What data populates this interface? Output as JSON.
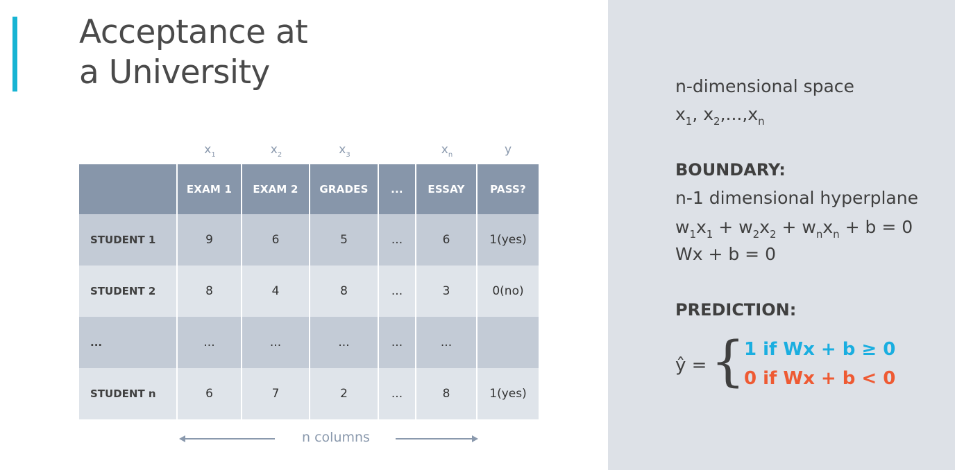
{
  "title": {
    "line1": "Acceptance at",
    "line2": "a University"
  },
  "table": {
    "variables": [
      {
        "base": "x",
        "sub": "1"
      },
      {
        "base": "x",
        "sub": "2"
      },
      {
        "base": "x",
        "sub": "3"
      },
      {
        "base": "",
        "sub": ""
      },
      {
        "base": "x",
        "sub": "n"
      },
      {
        "base": "y",
        "sub": ""
      }
    ],
    "headers": [
      "",
      "EXAM 1",
      "EXAM 2",
      "GRADES",
      "...",
      "ESSAY",
      "PASS?"
    ],
    "rows": [
      [
        "STUDENT 1",
        "9",
        "6",
        "5",
        "...",
        "6",
        "1(yes)"
      ],
      [
        "STUDENT 2",
        "8",
        "4",
        "8",
        "...",
        "3",
        "0(no)"
      ],
      [
        "...",
        "...",
        "...",
        "...",
        "...",
        "...",
        ""
      ],
      [
        "STUDENT n",
        "6",
        "7",
        "2",
        "...",
        "8",
        "1(yes)"
      ]
    ],
    "columns_label": "n columns"
  },
  "side": {
    "space_title": "n-dimensional space",
    "space_vars": {
      "x": "x",
      "s1": "1",
      "s2": "2",
      "sn": "n",
      "sep1": ", ",
      "sep2": ",...,"
    },
    "boundary_heading": "BOUNDARY:",
    "boundary_desc": "n-1 dimensional hyperplane",
    "equation": {
      "w": "w",
      "x": "x",
      "s1": "1",
      "s2": "2",
      "sn": "n",
      "plus": " + ",
      "tail": " + b = 0"
    },
    "vector_eq": "Wx + b = 0",
    "prediction_heading": "PREDICTION:",
    "yhat": "ŷ =",
    "brace": "{",
    "case_one": "1 if Wx + b ≥ 0",
    "case_zero": "0 if Wx + b < 0"
  },
  "colors": {
    "accent": "#17b4d3",
    "header_bg": "#8796aa",
    "row_dark": "#c3cbd6",
    "row_light": "#dfe4ea",
    "positive": "#1aaee0",
    "negative": "#ee5a33",
    "panel_bg": "#dde1e7"
  }
}
